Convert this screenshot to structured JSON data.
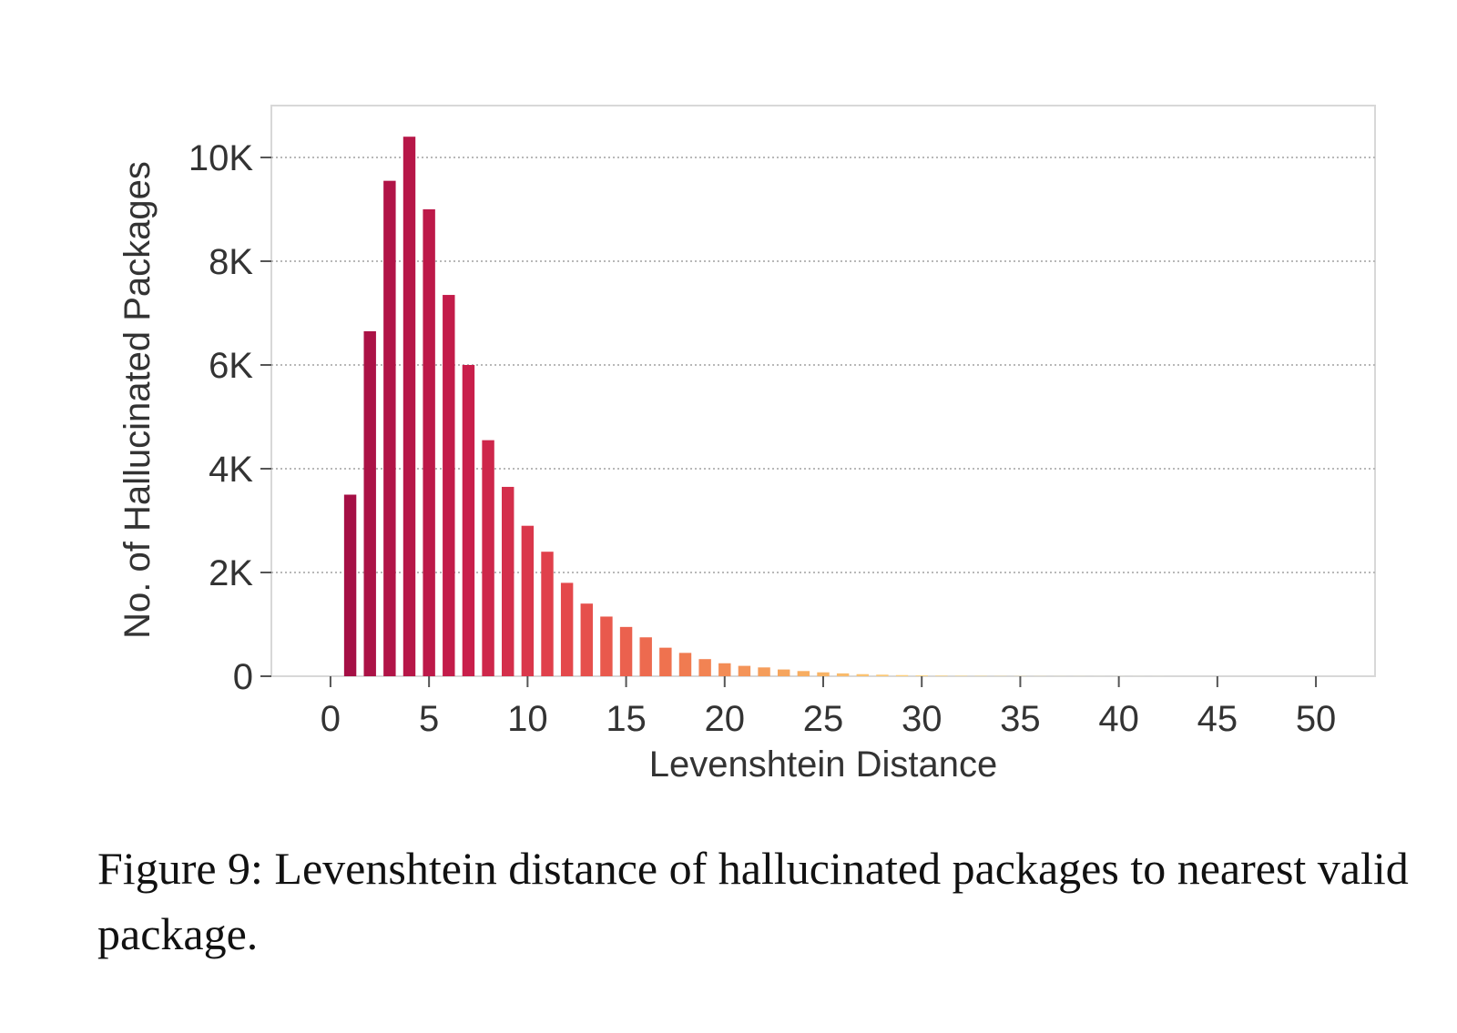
{
  "chart_data": {
    "type": "bar",
    "x": [
      1,
      2,
      3,
      4,
      5,
      6,
      7,
      8,
      9,
      10,
      11,
      12,
      13,
      14,
      15,
      16,
      17,
      18,
      19,
      20,
      21,
      22,
      23,
      24,
      25,
      26,
      27,
      28,
      29,
      30,
      31,
      32,
      33,
      34,
      35,
      36,
      37,
      38,
      39,
      40,
      41,
      42,
      43,
      44,
      45,
      46,
      47,
      48,
      49,
      50
    ],
    "values": [
      3500,
      6650,
      9550,
      10400,
      9000,
      7350,
      6000,
      4550,
      3650,
      2900,
      2400,
      1800,
      1400,
      1150,
      950,
      750,
      550,
      450,
      330,
      250,
      200,
      170,
      130,
      100,
      75,
      55,
      40,
      30,
      22,
      16,
      12,
      9,
      7,
      5,
      4,
      3,
      2,
      2,
      1,
      1,
      1,
      1,
      0,
      0,
      0,
      0,
      0,
      0,
      0,
      0
    ],
    "xlabel": "Levenshtein Distance",
    "ylabel": "No. of Hallucinated Packages",
    "xlim": [
      -3,
      53
    ],
    "ylim": [
      0,
      11000
    ],
    "xticks": [
      0,
      5,
      10,
      15,
      20,
      25,
      30,
      35,
      40,
      45,
      50
    ],
    "xtick_labels": [
      "0",
      "5",
      "10",
      "15",
      "20",
      "25",
      "30",
      "35",
      "40",
      "45",
      "50"
    ],
    "yticks": [
      0,
      2000,
      4000,
      6000,
      8000,
      10000
    ],
    "ytick_labels": [
      "0",
      "2K",
      "4K",
      "6K",
      "8K",
      "10K"
    ],
    "grid": "horizontal dotted",
    "colormap": "YlOrRd (reversed, dark red to pale yellow)",
    "colors": {
      "start": "#a50f45",
      "mid": "#e85a48",
      "end": "#fff3ae",
      "grid": "#b8b8b8",
      "frame": "#d8d8d8"
    }
  },
  "caption": "Figure 9: Levenshtein distance of hallucinated packages to nearest valid package."
}
